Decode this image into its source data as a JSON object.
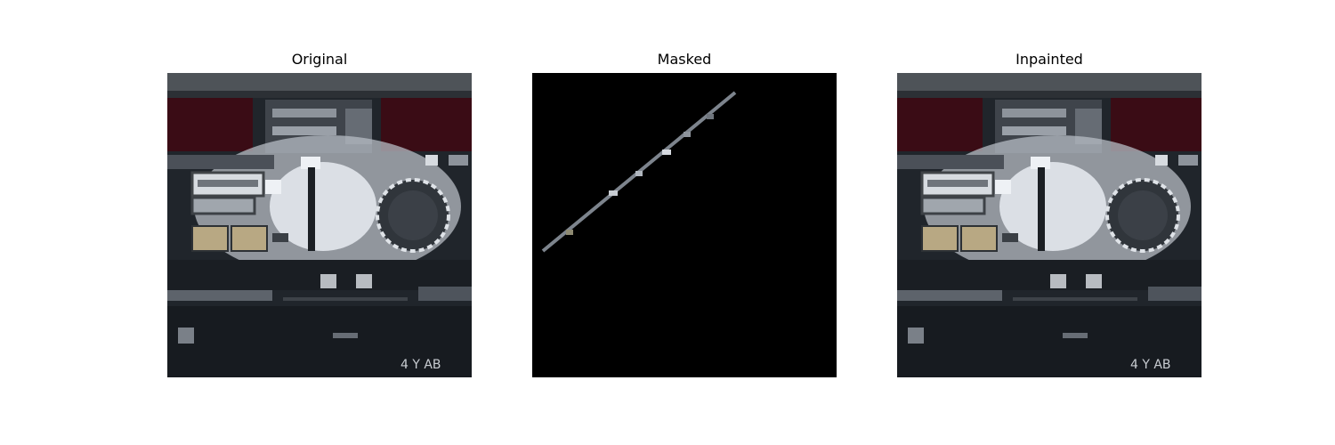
{
  "figure": {
    "panels": [
      {
        "title": "Original"
      },
      {
        "title": "Masked"
      },
      {
        "title": "Inpainted"
      }
    ]
  },
  "colors": {
    "background": "#ffffff",
    "mask_background": "#000000",
    "panel_top_band": "#4e5358",
    "panel_dark_red": "#3a0c15",
    "panel_metal": "#b7bcc4",
    "panel_dark": "#1c2127",
    "panel_tan": "#b8a883"
  },
  "image_labels": {
    "bottom_right_text": "4 Y AB"
  }
}
